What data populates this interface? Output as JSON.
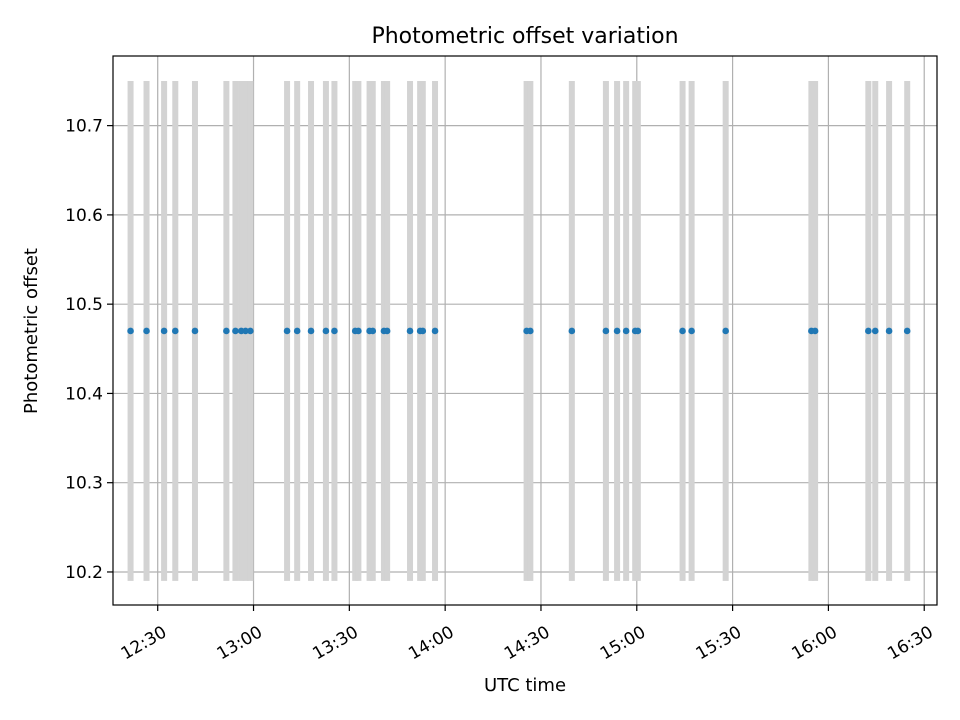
{
  "chart_data": {
    "type": "scatter",
    "title": "Photometric offset variation",
    "xlabel": "UTC time",
    "ylabel": "Photometric offset",
    "xlim": [
      "12:16",
      "16:34"
    ],
    "ylim": [
      10.163,
      10.778
    ],
    "x_ticks": [
      "12:30",
      "13:00",
      "13:30",
      "14:00",
      "14:30",
      "15:00",
      "15:30",
      "16:00",
      "16:30"
    ],
    "y_ticks": [
      10.2,
      10.3,
      10.4,
      10.5,
      10.6,
      10.7
    ],
    "grid": true,
    "marker_color": "#1f77b4",
    "bar_color": "#d3d3d3",
    "exposure_bars": {
      "y_min": 10.19,
      "y_max": 10.75
    },
    "series": [
      {
        "x": [
          "12:21:30",
          "12:26:30",
          "12:32:00",
          "12:35:30",
          "12:41:40",
          "12:51:30",
          "12:54:20",
          "12:56:10",
          "12:57:30",
          "12:59:00",
          "13:10:30",
          "13:13:40",
          "13:18:00",
          "13:22:40",
          "13:25:20",
          "13:31:50",
          "13:32:50",
          "13:36:20",
          "13:37:20",
          "13:40:50",
          "13:41:50",
          "13:49:00",
          "13:52:10",
          "13:53:00",
          "13:56:50",
          "14:25:30",
          "14:26:40",
          "14:39:40",
          "14:50:20",
          "14:53:50",
          "14:56:40",
          "14:59:30",
          "15:00:20",
          "15:14:20",
          "15:17:10",
          "15:27:50",
          "15:54:40",
          "15:55:50",
          "16:12:30",
          "16:14:40",
          "16:19:00",
          "16:24:40"
        ],
        "y": [
          10.47,
          10.47,
          10.47,
          10.47,
          10.47,
          10.47,
          10.47,
          10.47,
          10.47,
          10.47,
          10.47,
          10.47,
          10.47,
          10.47,
          10.47,
          10.47,
          10.47,
          10.47,
          10.47,
          10.47,
          10.47,
          10.47,
          10.47,
          10.47,
          10.47,
          10.47,
          10.47,
          10.47,
          10.47,
          10.47,
          10.47,
          10.47,
          10.47,
          10.47,
          10.47,
          10.47,
          10.47,
          10.47,
          10.47,
          10.47,
          10.47,
          10.47
        ]
      }
    ]
  }
}
